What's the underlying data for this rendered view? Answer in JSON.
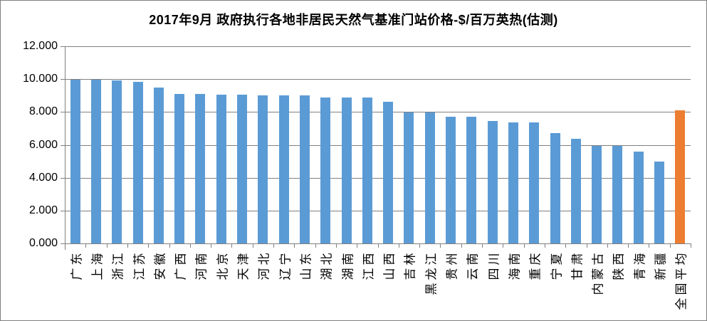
{
  "chart_data": {
    "type": "bar",
    "title": "2017年9月 政府执行各地非居民天然气基准门站价格-$/百万英热(估测)",
    "xlabel": "",
    "ylabel": "",
    "categories": [
      "广东",
      "上海",
      "浙江",
      "江苏",
      "安徽",
      "广西",
      "河南",
      "北京",
      "天津",
      "河北",
      "辽宁",
      "山东",
      "湖北",
      "湖南",
      "江西",
      "山西",
      "吉林",
      "黑龙江",
      "贵州",
      "云南",
      "四川",
      "海南",
      "重庆",
      "宁夏",
      "甘肃",
      "内蒙古",
      "陕西",
      "青海",
      "新疆",
      "全国平均"
    ],
    "values": [
      9.95,
      9.95,
      9.9,
      9.85,
      9.5,
      9.1,
      9.1,
      9.05,
      9.05,
      9.0,
      9.0,
      9.0,
      8.9,
      8.87,
      8.88,
      8.63,
      7.95,
      7.95,
      7.7,
      7.7,
      7.43,
      7.38,
      7.38,
      6.73,
      6.37,
      5.95,
      5.95,
      5.6,
      5.0,
      8.12
    ],
    "ylim": [
      0,
      12
    ],
    "ytick_step": 2,
    "ytick_labels": [
      "0.000",
      "2.000",
      "4.000",
      "6.000",
      "8.000",
      "10.000",
      "12.000"
    ],
    "grid": true,
    "legend": "none",
    "bar_color": "#5B9BD5",
    "highlight_color": "#ED7D31",
    "highlight_category": "全国平均",
    "gridline_color": "#808080",
    "axis_color": "#808080",
    "text_color": "#000000"
  }
}
